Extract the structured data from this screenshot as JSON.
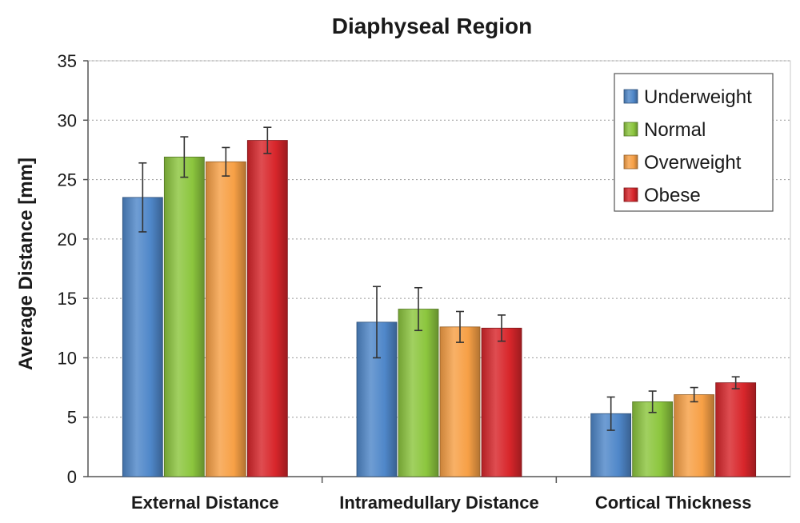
{
  "chart_data": {
    "type": "bar",
    "title": "Diaphyseal Region",
    "xlabel": "",
    "ylabel": "Average Distance [mm]",
    "ylim": [
      0,
      35
    ],
    "yticks": [
      0,
      5,
      10,
      15,
      20,
      25,
      30,
      35
    ],
    "grid": true,
    "legend_position": "top-right",
    "categories": [
      "External Distance",
      "Intramedullary Distance",
      "Cortical Thickness"
    ],
    "series": [
      {
        "name": "Underweight",
        "color": "#4f87c9",
        "values": [
          23.5,
          13.0,
          5.3
        ],
        "errors": [
          2.9,
          3.0,
          1.4
        ]
      },
      {
        "name": "Normal",
        "color": "#8cc63e",
        "values": [
          26.9,
          14.1,
          6.3
        ],
        "errors": [
          1.7,
          1.8,
          0.9
        ]
      },
      {
        "name": "Overweight",
        "color": "#f7a046",
        "values": [
          26.5,
          12.6,
          6.9
        ],
        "errors": [
          1.2,
          1.3,
          0.6
        ]
      },
      {
        "name": "Obese",
        "color": "#d8262b",
        "values": [
          28.3,
          12.5,
          7.9
        ],
        "errors": [
          1.1,
          1.1,
          0.5
        ]
      }
    ]
  }
}
